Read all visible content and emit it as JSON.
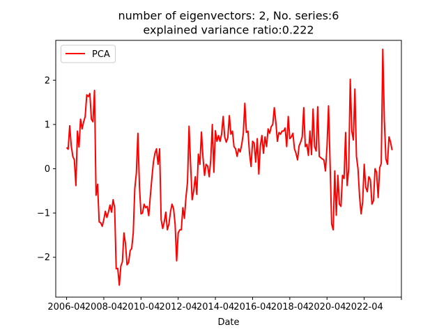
{
  "chart_data": {
    "type": "line",
    "title_line1": "number of eigenvectors: 2, No. series:6",
    "title_line2": "explained variance ratio:0.222",
    "xlabel": "Date",
    "ylabel": "",
    "x_tick_labels": [
      "2006-04",
      "2008-04",
      "2010-04",
      "2012-04",
      "2014-04",
      "2016-04",
      "2018-04",
      "2020-04",
      "2022-04"
    ],
    "y_ticks": [
      2,
      1,
      0,
      -1,
      -2
    ],
    "y_tick_labels": [
      "2",
      "1",
      "0",
      "−1",
      "−2"
    ],
    "ylim": [
      -2.9,
      2.9
    ],
    "xlim": [
      "2005-09",
      "2024-04"
    ],
    "grid": false,
    "legend": {
      "placement": "top-left",
      "entries": [
        "PCA"
      ]
    },
    "series": [
      {
        "name": "PCA",
        "color": "#ff0000",
        "points": [
          [
            "2006-04",
            0.48
          ],
          [
            "2006-05",
            0.44
          ],
          [
            "2006-06",
            0.97
          ],
          [
            "2006-07",
            0.52
          ],
          [
            "2006-08",
            0.28
          ],
          [
            "2006-09",
            0.2
          ],
          [
            "2006-10",
            -0.38
          ],
          [
            "2006-11",
            0.85
          ],
          [
            "2006-12",
            0.49
          ],
          [
            "2007-01",
            1.12
          ],
          [
            "2007-02",
            0.9
          ],
          [
            "2007-03",
            1.06
          ],
          [
            "2007-04",
            1.18
          ],
          [
            "2007-05",
            1.67
          ],
          [
            "2007-06",
            1.63
          ],
          [
            "2007-07",
            1.7
          ],
          [
            "2007-08",
            1.12
          ],
          [
            "2007-09",
            1.06
          ],
          [
            "2007-10",
            1.77
          ],
          [
            "2007-11",
            -0.6
          ],
          [
            "2007-12",
            -0.35
          ],
          [
            "2008-01",
            -1.2
          ],
          [
            "2008-02",
            -1.22
          ],
          [
            "2008-03",
            -1.3
          ],
          [
            "2008-04",
            -1.15
          ],
          [
            "2008-05",
            -0.96
          ],
          [
            "2008-06",
            -1.1
          ],
          [
            "2008-07",
            -0.98
          ],
          [
            "2008-08",
            -0.82
          ],
          [
            "2008-09",
            -0.98
          ],
          [
            "2008-10",
            -0.7
          ],
          [
            "2008-11",
            -0.88
          ],
          [
            "2008-12",
            -2.26
          ],
          [
            "2009-01",
            -2.25
          ],
          [
            "2009-02",
            -2.63
          ],
          [
            "2009-03",
            -2.2
          ],
          [
            "2009-04",
            -2.1
          ],
          [
            "2009-05",
            -1.45
          ],
          [
            "2009-06",
            -1.7
          ],
          [
            "2009-07",
            -2.17
          ],
          [
            "2009-08",
            -2.12
          ],
          [
            "2009-09",
            -1.85
          ],
          [
            "2009-10",
            -1.8
          ],
          [
            "2009-11",
            -1.45
          ],
          [
            "2009-12",
            -0.45
          ],
          [
            "2010-01",
            -0.1
          ],
          [
            "2010-02",
            0.8
          ],
          [
            "2010-03",
            -0.4
          ],
          [
            "2010-04",
            -1.02
          ],
          [
            "2010-05",
            -1.0
          ],
          [
            "2010-06",
            -0.8
          ],
          [
            "2010-07",
            -0.88
          ],
          [
            "2010-08",
            -0.85
          ],
          [
            "2010-09",
            -1.06
          ],
          [
            "2010-10",
            -0.62
          ],
          [
            "2010-11",
            -0.22
          ],
          [
            "2010-12",
            0.15
          ],
          [
            "2011-01",
            0.35
          ],
          [
            "2011-02",
            0.45
          ],
          [
            "2011-03",
            0.1
          ],
          [
            "2011-04",
            0.45
          ],
          [
            "2011-05",
            -1.15
          ],
          [
            "2011-06",
            -1.35
          ],
          [
            "2011-07",
            -1.2
          ],
          [
            "2011-08",
            -0.98
          ],
          [
            "2011-09",
            -1.38
          ],
          [
            "2011-10",
            -1.25
          ],
          [
            "2011-11",
            -0.98
          ],
          [
            "2011-12",
            -0.8
          ],
          [
            "2012-01",
            -0.9
          ],
          [
            "2012-02",
            -1.25
          ],
          [
            "2012-03",
            -2.08
          ],
          [
            "2012-04",
            -1.45
          ],
          [
            "2012-05",
            -1.38
          ],
          [
            "2012-06",
            -1.38
          ],
          [
            "2012-07",
            -0.88
          ],
          [
            "2012-08",
            -1.12
          ],
          [
            "2012-09",
            -0.65
          ],
          [
            "2012-10",
            -0.3
          ],
          [
            "2012-11",
            0.96
          ],
          [
            "2012-12",
            0.1
          ],
          [
            "2013-01",
            -0.7
          ],
          [
            "2013-02",
            -0.5
          ],
          [
            "2013-03",
            -0.18
          ],
          [
            "2013-04",
            -0.58
          ],
          [
            "2013-05",
            0.33
          ],
          [
            "2013-06",
            0.1
          ],
          [
            "2013-07",
            0.83
          ],
          [
            "2013-08",
            0.25
          ],
          [
            "2013-09",
            -0.15
          ],
          [
            "2013-10",
            0.1
          ],
          [
            "2013-11",
            0.06
          ],
          [
            "2013-12",
            -0.18
          ],
          [
            "2014-01",
            0.2
          ],
          [
            "2014-02",
            1.0
          ],
          [
            "2014-03",
            -0.08
          ],
          [
            "2014-04",
            0.86
          ],
          [
            "2014-05",
            0.62
          ],
          [
            "2014-06",
            0.75
          ],
          [
            "2014-07",
            0.62
          ],
          [
            "2014-08",
            0.78
          ],
          [
            "2014-09",
            1.18
          ],
          [
            "2014-10",
            0.72
          ],
          [
            "2014-11",
            0.6
          ],
          [
            "2014-12",
            0.7
          ],
          [
            "2015-01",
            1.2
          ],
          [
            "2015-02",
            0.78
          ],
          [
            "2015-03",
            0.85
          ],
          [
            "2015-04",
            0.5
          ],
          [
            "2015-05",
            0.45
          ],
          [
            "2015-06",
            0.28
          ],
          [
            "2015-07",
            0.45
          ],
          [
            "2015-08",
            0.38
          ],
          [
            "2015-09",
            0.55
          ],
          [
            "2015-10",
            0.8
          ],
          [
            "2015-11",
            1.48
          ],
          [
            "2015-12",
            0.82
          ],
          [
            "2016-01",
            0.85
          ],
          [
            "2016-02",
            0.35
          ],
          [
            "2016-03",
            0.05
          ],
          [
            "2016-04",
            0.62
          ],
          [
            "2016-05",
            0.58
          ],
          [
            "2016-06",
            0.15
          ],
          [
            "2016-07",
            0.68
          ],
          [
            "2016-08",
            -0.12
          ],
          [
            "2016-09",
            0.52
          ],
          [
            "2016-10",
            0.75
          ],
          [
            "2016-11",
            0.35
          ],
          [
            "2016-12",
            0.72
          ],
          [
            "2017-01",
            0.5
          ],
          [
            "2017-02",
            0.9
          ],
          [
            "2017-03",
            0.8
          ],
          [
            "2017-04",
            0.95
          ],
          [
            "2017-05",
            1.0
          ],
          [
            "2017-06",
            1.38
          ],
          [
            "2017-07",
            1.05
          ],
          [
            "2017-08",
            0.62
          ],
          [
            "2017-09",
            0.82
          ],
          [
            "2017-10",
            0.78
          ],
          [
            "2017-11",
            0.85
          ],
          [
            "2017-12",
            0.85
          ],
          [
            "2018-01",
            0.92
          ],
          [
            "2018-02",
            0.5
          ],
          [
            "2018-03",
            1.18
          ],
          [
            "2018-04",
            0.68
          ],
          [
            "2018-05",
            0.72
          ],
          [
            "2018-06",
            0.8
          ],
          [
            "2018-07",
            0.45
          ],
          [
            "2018-08",
            0.35
          ],
          [
            "2018-09",
            0.2
          ],
          [
            "2018-10",
            0.52
          ],
          [
            "2018-11",
            0.6
          ],
          [
            "2018-12",
            0.72
          ],
          [
            "2019-01",
            1.38
          ],
          [
            "2019-02",
            0.5
          ],
          [
            "2019-03",
            0.55
          ],
          [
            "2019-04",
            0.3
          ],
          [
            "2019-05",
            0.85
          ],
          [
            "2019-06",
            0.32
          ],
          [
            "2019-07",
            1.35
          ],
          [
            "2019-08",
            0.5
          ],
          [
            "2019-09",
            0.4
          ],
          [
            "2019-10",
            1.4
          ],
          [
            "2019-11",
            0.28
          ],
          [
            "2019-12",
            0.25
          ],
          [
            "2020-01",
            0.22
          ],
          [
            "2020-02",
            0.2
          ],
          [
            "2020-03",
            -0.05
          ],
          [
            "2020-04",
            0.5
          ],
          [
            "2020-05",
            1.42
          ],
          [
            "2020-06",
            0.1
          ],
          [
            "2020-07",
            -1.25
          ],
          [
            "2020-08",
            -1.38
          ],
          [
            "2020-09",
            -0.05
          ],
          [
            "2020-10",
            -1.05
          ],
          [
            "2020-11",
            -0.15
          ],
          [
            "2020-12",
            -0.8
          ],
          [
            "2021-01",
            -0.85
          ],
          [
            "2021-02",
            -0.15
          ],
          [
            "2021-03",
            -0.22
          ],
          [
            "2021-04",
            0.82
          ],
          [
            "2021-05",
            -0.38
          ],
          [
            "2021-06",
            0.0
          ],
          [
            "2021-07",
            2.02
          ],
          [
            "2021-08",
            0.85
          ],
          [
            "2021-09",
            0.65
          ],
          [
            "2021-10",
            1.8
          ],
          [
            "2021-11",
            0.28
          ],
          [
            "2021-12",
            0.0
          ],
          [
            "2022-01",
            -0.62
          ],
          [
            "2022-02",
            -1.02
          ],
          [
            "2022-03",
            -0.75
          ],
          [
            "2022-04",
            0.1
          ],
          [
            "2022-05",
            -0.42
          ],
          [
            "2022-06",
            -0.52
          ],
          [
            "2022-07",
            -0.18
          ],
          [
            "2022-08",
            -0.25
          ],
          [
            "2022-09",
            -0.8
          ],
          [
            "2022-10",
            -0.72
          ],
          [
            "2022-11",
            0.0
          ],
          [
            "2022-12",
            -0.08
          ],
          [
            "2023-01",
            -0.65
          ],
          [
            "2023-02",
            0.02
          ],
          [
            "2023-03",
            0.12
          ],
          [
            "2023-04",
            2.7
          ],
          [
            "2023-05",
            1.1
          ],
          [
            "2023-06",
            0.22
          ],
          [
            "2023-07",
            0.1
          ],
          [
            "2023-08",
            0.72
          ],
          [
            "2023-09",
            0.6
          ],
          [
            "2023-10",
            0.42
          ]
        ]
      }
    ]
  }
}
